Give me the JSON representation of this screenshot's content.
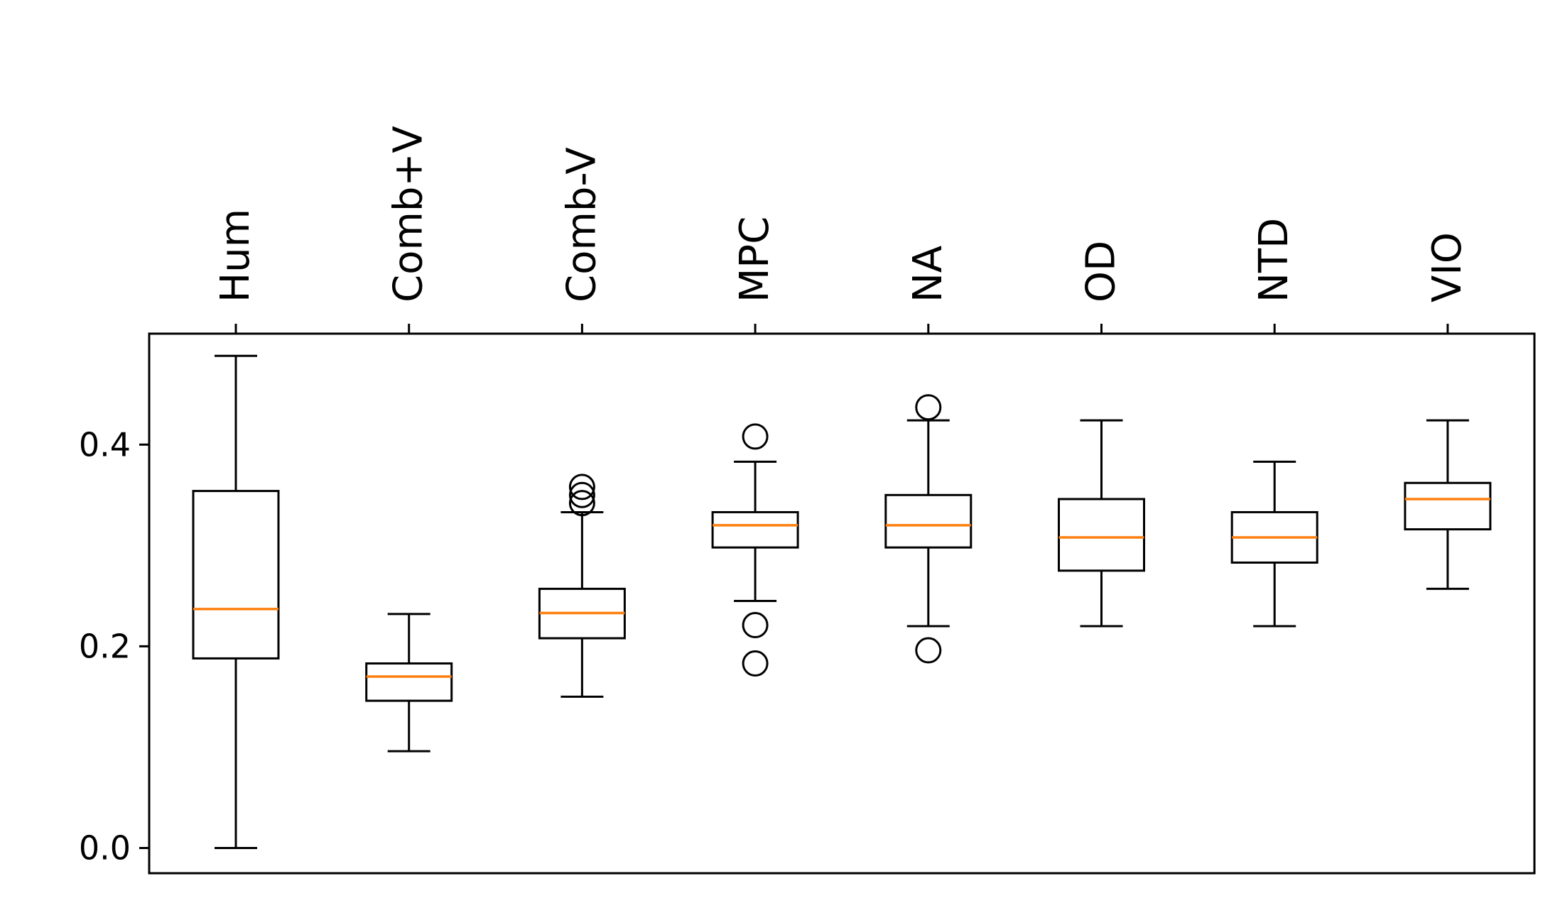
{
  "chart_data": {
    "type": "boxplot",
    "title": "",
    "xlabel": "",
    "ylabel": "",
    "ylim": [
      -0.025,
      0.51
    ],
    "yticks": [
      "0.0",
      "0.2",
      "0.4"
    ],
    "ytick_values": [
      0.0,
      0.2,
      0.4
    ],
    "xtick_position": "top",
    "xtick_rotation": 90,
    "grid": false,
    "colors": {
      "box": "#000000",
      "median": "#ff7f0e",
      "background": "#ffffff"
    },
    "categories": [
      "Hum",
      "Comb+V",
      "Comb-V",
      "MPC",
      "NA",
      "OD",
      "NTD",
      "VIO"
    ],
    "boxes": [
      {
        "whislo": 0.0,
        "q1": 0.188,
        "median": 0.237,
        "q3": 0.354,
        "whishi": 0.488,
        "fliers": []
      },
      {
        "whislo": 0.096,
        "q1": 0.146,
        "median": 0.17,
        "q3": 0.183,
        "whishi": 0.232,
        "fliers": []
      },
      {
        "whislo": 0.15,
        "q1": 0.208,
        "median": 0.233,
        "q3": 0.257,
        "whishi": 0.333,
        "fliers": [
          0.342,
          0.35,
          0.358
        ]
      },
      {
        "whislo": 0.245,
        "q1": 0.298,
        "median": 0.32,
        "q3": 0.333,
        "whishi": 0.383,
        "fliers": [
          0.183,
          0.221,
          0.408
        ]
      },
      {
        "whislo": 0.22,
        "q1": 0.298,
        "median": 0.32,
        "q3": 0.35,
        "whishi": 0.424,
        "fliers": [
          0.196,
          0.437
        ]
      },
      {
        "whislo": 0.22,
        "q1": 0.275,
        "median": 0.308,
        "q3": 0.346,
        "whishi": 0.424,
        "fliers": []
      },
      {
        "whislo": 0.22,
        "q1": 0.283,
        "median": 0.308,
        "q3": 0.333,
        "whishi": 0.383,
        "fliers": []
      },
      {
        "whislo": 0.257,
        "q1": 0.316,
        "median": 0.346,
        "q3": 0.362,
        "whishi": 0.424,
        "fliers": []
      }
    ]
  }
}
